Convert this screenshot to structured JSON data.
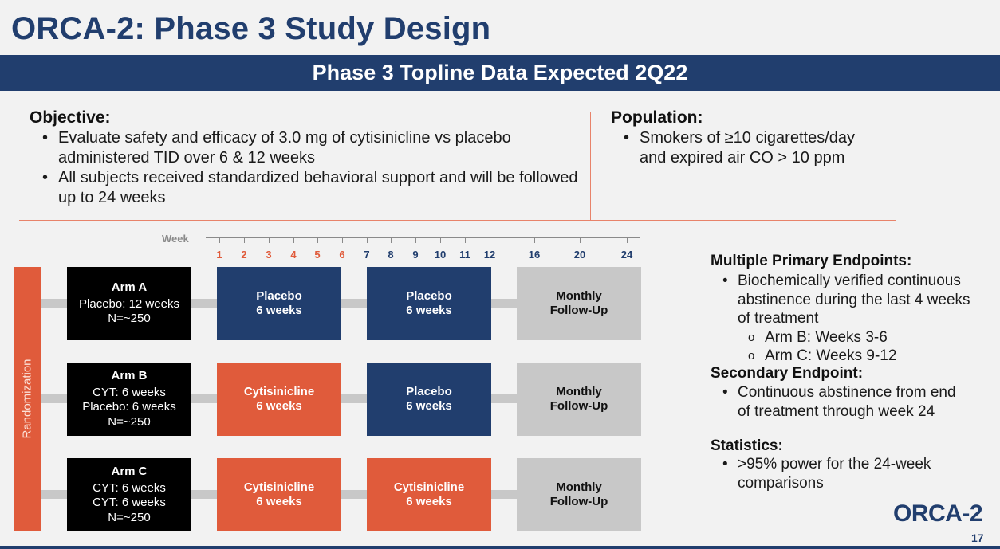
{
  "title": "ORCA-2: Phase 3 Study Design",
  "banner": "Phase 3 Topline Data Expected 2Q22",
  "objective": {
    "heading": "Objective:",
    "bullets": [
      "Evaluate safety and efficacy of 3.0 mg of cytisinicline vs placebo administered TID over 6 & 12 weeks",
      "All subjects received standardized behavioral support and will be followed up to 24 weeks"
    ]
  },
  "population": {
    "heading": "Population:",
    "bullets": [
      "Smokers of ≥10 cigarettes/day and expired air CO > 10 ppm"
    ]
  },
  "timeline": {
    "week_label": "Week",
    "ticks": [
      {
        "label": "1",
        "color": "red"
      },
      {
        "label": "2",
        "color": "red"
      },
      {
        "label": "3",
        "color": "red"
      },
      {
        "label": "4",
        "color": "red"
      },
      {
        "label": "5",
        "color": "red"
      },
      {
        "label": "6",
        "color": "red"
      },
      {
        "label": "7",
        "color": "blue"
      },
      {
        "label": "8",
        "color": "blue"
      },
      {
        "label": "9",
        "color": "blue"
      },
      {
        "label": "10",
        "color": "blue"
      },
      {
        "label": "11",
        "color": "blue"
      },
      {
        "label": "12",
        "color": "blue"
      },
      {
        "label": "16",
        "color": "blue"
      },
      {
        "label": "20",
        "color": "blue"
      },
      {
        "label": "24",
        "color": "blue"
      }
    ]
  },
  "randomization_label": "Randomization",
  "arms": [
    {
      "name": "Arm A",
      "details": [
        "Placebo: 12 weeks",
        "N=~250"
      ],
      "phases": [
        {
          "type": "placebo",
          "line1": "Placebo",
          "line2": "6 weeks"
        },
        {
          "type": "placebo",
          "line1": "Placebo",
          "line2": "6 weeks"
        },
        {
          "type": "followup",
          "line1": "Monthly",
          "line2": "Follow-Up"
        }
      ]
    },
    {
      "name": "Arm B",
      "details": [
        "CYT: 6 weeks",
        "Placebo: 6 weeks",
        "N=~250"
      ],
      "phases": [
        {
          "type": "cyt",
          "line1": "Cytisinicline",
          "line2": "6 weeks"
        },
        {
          "type": "placebo",
          "line1": "Placebo",
          "line2": "6 weeks"
        },
        {
          "type": "followup",
          "line1": "Monthly",
          "line2": "Follow-Up"
        }
      ]
    },
    {
      "name": "Arm C",
      "details": [
        "CYT: 6 weeks",
        "CYT: 6 weeks",
        "N=~250"
      ],
      "phases": [
        {
          "type": "cyt",
          "line1": "Cytisinicline",
          "line2": "6 weeks"
        },
        {
          "type": "cyt",
          "line1": "Cytisinicline",
          "line2": "6 weeks"
        },
        {
          "type": "followup",
          "line1": "Monthly",
          "line2": "Follow-Up"
        }
      ]
    }
  ],
  "endpoints": {
    "primary_heading": "Multiple Primary Endpoints:",
    "primary_bullet": "Biochemically verified continuous abstinence during the last 4 weeks of treatment",
    "primary_sub": [
      "Arm B: Weeks 3-6",
      "Arm C: Weeks 9-12"
    ],
    "secondary_heading": "Secondary Endpoint:",
    "secondary_bullet": "Continuous abstinence from end of treatment through week 24",
    "statistics_heading": "Statistics:",
    "statistics_bullet": ">95% power for the 24-week comparisons"
  },
  "logo_text": "ORCA-2",
  "page_number": "17",
  "colors": {
    "navy": "#213e6e",
    "orange": "#e05b3b",
    "gray": "#c8c8c8",
    "black": "#000000"
  }
}
